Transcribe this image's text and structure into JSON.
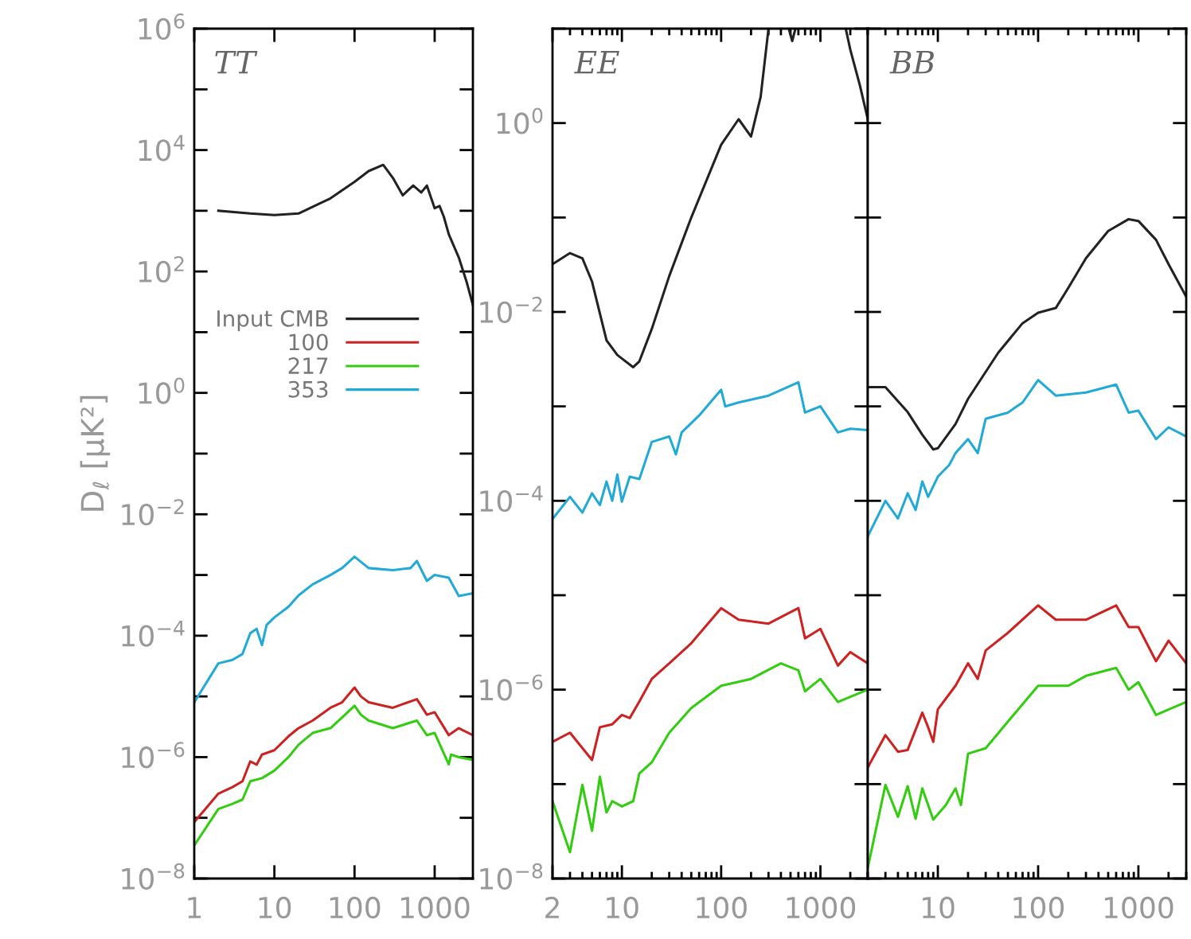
{
  "chart_data": [
    {
      "type": "line",
      "title": "TT",
      "ylabel": "D$_{ℓ}$ [μK²]",
      "log": "xy",
      "legend": "left",
      "xlim": [
        1,
        3000
      ],
      "ylim": [
        1e-08,
        1000000.0
      ],
      "xticks": [
        1,
        10,
        100,
        1000
      ],
      "yticks": [
        {
          "value": 1e-08,
          "label": "10$^{−8}$"
        },
        {
          "value": 1e-07,
          "label": null
        },
        {
          "value": 1e-06,
          "label": "10$^{−6}$"
        },
        {
          "value": 1e-05,
          "label": null
        },
        {
          "value": 0.0001,
          "label": "10$^{−4}$"
        },
        {
          "value": 0.001,
          "label": null
        },
        {
          "value": 0.01,
          "label": "10$^{−2}$"
        },
        {
          "value": 0.1,
          "label": null
        },
        {
          "value": 1,
          "label": "10$^{0}$"
        },
        {
          "value": 10,
          "label": null
        },
        {
          "value": 100,
          "label": "10$^{2}$"
        },
        {
          "value": 1000,
          "label": null
        },
        {
          "value": 10000,
          "label": "10$^{4}$"
        },
        {
          "value": 100000,
          "label": null
        },
        {
          "value": 1000000,
          "label": "10$^{6}$"
        }
      ],
      "series": [
        {
          "name": "Input CMB",
          "color": "#222222",
          "x": [
            2,
            5,
            10,
            20,
            50,
            100,
            150,
            228,
            300,
            400,
            540,
            680,
            800,
            1000,
            1150,
            1300,
            1500,
            2000,
            2500,
            3000
          ],
          "values": [
            1000,
            900,
            850,
            900,
            1600,
            3000,
            4500,
            5700,
            3500,
            1800,
            2600,
            2000,
            2600,
            1100,
            1200,
            800,
            410,
            170,
            68,
            28
          ]
        },
        {
          "name": "100",
          "color": "#cc2222",
          "x": [
            1,
            2,
            3,
            4,
            5,
            6,
            7,
            10,
            15,
            20,
            30,
            50,
            70,
            100,
            120,
            150,
            300,
            600,
            800,
            1000,
            1500,
            2000,
            3000
          ],
          "values": [
            8.5e-08,
            2.5e-07,
            3.2e-07,
            4e-07,
            8.5e-07,
            7.5e-07,
            1.1e-06,
            1.3e-06,
            2.2e-06,
            3e-06,
            4e-06,
            6.5e-06,
            8e-06,
            1.4e-05,
            1e-05,
            8e-06,
            6.5e-06,
            9e-06,
            5e-06,
            5.5e-06,
            2.3e-06,
            3e-06,
            2.3e-06
          ]
        },
        {
          "name": "217",
          "color": "#33cc11",
          "x": [
            1,
            2,
            3,
            4,
            5,
            7,
            10,
            15,
            20,
            30,
            50,
            70,
            100,
            120,
            150,
            300,
            600,
            800,
            1000,
            1500,
            1600,
            2000,
            3000
          ],
          "values": [
            3.5e-08,
            1.4e-07,
            1.7e-07,
            2e-07,
            4e-07,
            4.5e-07,
            6e-07,
            1e-06,
            1.6e-06,
            2.5e-06,
            3e-06,
            4.5e-06,
            7e-06,
            5e-06,
            4e-06,
            3e-06,
            4e-06,
            2.3e-06,
            2.5e-06,
            7.6e-07,
            1.1e-06,
            1e-06,
            9e-07
          ]
        },
        {
          "name": "353",
          "color": "#22aad6",
          "x": [
            1,
            2,
            3,
            4,
            5,
            6,
            7,
            8,
            10,
            15,
            20,
            30,
            50,
            70,
            100,
            150,
            300,
            500,
            600,
            800,
            1000,
            1500,
            2000,
            3000
          ],
          "values": [
            8e-06,
            3.5e-05,
            4e-05,
            5e-05,
            0.00011,
            0.00013,
            7e-05,
            0.00015,
            0.0002,
            0.0003,
            0.00046,
            0.0007,
            0.001,
            0.0013,
            0.002,
            0.0013,
            0.0012,
            0.0013,
            0.0017,
            0.0008,
            0.001,
            0.0009,
            0.00045,
            0.0005
          ]
        }
      ]
    },
    {
      "type": "line",
      "title": "EE",
      "log": "xy",
      "xlim": [
        2,
        3000
      ],
      "ylim": [
        1e-08,
        10
      ],
      "xticks": [
        2,
        10,
        100,
        1000
      ],
      "yticks": [
        {
          "value": 1e-08,
          "label": "10$^{−8}$"
        },
        {
          "value": 1e-07,
          "label": null
        },
        {
          "value": 1e-06,
          "label": "10$^{−6}$"
        },
        {
          "value": 1e-05,
          "label": null
        },
        {
          "value": 0.0001,
          "label": "10$^{−4}$"
        },
        {
          "value": 0.001,
          "label": null
        },
        {
          "value": 0.01,
          "label": "10$^{−2}$"
        },
        {
          "value": 0.1,
          "label": null
        },
        {
          "value": 1,
          "label": "10$^{0}$"
        },
        {
          "value": 10,
          "label": null
        }
      ],
      "series": [
        {
          "color": "#222222",
          "x": [
            2,
            3,
            4,
            5,
            7,
            9,
            13,
            15,
            20,
            30,
            50,
            100,
            150,
            200,
            250,
            300,
            400,
            480,
            520,
            560,
            1000,
            1800,
            2000,
            2500,
            3000
          ],
          "values": [
            0.032,
            0.042,
            0.037,
            0.021,
            0.005,
            0.0035,
            0.0026,
            0.003,
            0.0066,
            0.024,
            0.1,
            0.59,
            1.1,
            0.72,
            1.9,
            10,
            null,
            10,
            7.4,
            10,
            null,
            10,
            6,
            2.5,
            1.1
          ]
        },
        {
          "color": "#cc2222",
          "x": [
            2,
            3,
            5,
            6,
            8,
            10,
            12,
            15,
            20,
            30,
            50,
            100,
            150,
            300,
            600,
            700,
            1000,
            1500,
            2000,
            3000
          ],
          "values": [
            2.8e-07,
            3.5e-07,
            1.8e-07,
            4e-07,
            4.3e-07,
            5.4e-07,
            5e-07,
            7.5e-07,
            1.3e-06,
            1.9e-06,
            3.1e-06,
            7.3e-06,
            5.5e-06,
            5e-06,
            7.3e-06,
            3.5e-06,
            4.4e-06,
            1.8e-06,
            2.5e-06,
            1.9e-06
          ]
        },
        {
          "color": "#33cc11",
          "x": [
            2,
            3,
            4,
            5,
            6,
            7,
            8,
            10,
            13,
            15,
            20,
            30,
            50,
            100,
            200,
            400,
            600,
            700,
            1000,
            1500,
            3000
          ],
          "values": [
            6.6e-08,
            1.9e-08,
            9.8e-08,
            3.2e-08,
            1.2e-07,
            5e-08,
            6.6e-08,
            5.8e-08,
            6.6e-08,
            1.3e-07,
            1.7e-07,
            3.5e-07,
            6.4e-07,
            1.1e-06,
            1.3e-06,
            1.9e-06,
            1.6e-06,
            9.6e-07,
            1.3e-06,
            7.4e-07,
            1e-06
          ]
        },
        {
          "color": "#22aad6",
          "x": [
            2,
            3,
            4,
            5,
            6,
            7,
            8,
            9,
            10,
            12,
            15,
            20,
            30,
            35,
            40,
            60,
            100,
            110,
            150,
            300,
            600,
            700,
            1000,
            1500,
            2000,
            3000
          ],
          "values": [
            6.4e-05,
            0.00011,
            7.5e-05,
            0.00012,
            9e-05,
            0.00016,
            0.0001,
            0.00019,
            9.8e-05,
            0.00018,
            0.00017,
            0.00042,
            0.00048,
            0.00031,
            0.00053,
            0.0008,
            0.0015,
            0.001,
            0.0011,
            0.0013,
            0.0018,
            0.00086,
            0.001,
            0.00053,
            0.00058,
            0.00056
          ]
        }
      ]
    },
    {
      "type": "line",
      "title": "BB",
      "log": "xy",
      "tick_labels": "x",
      "xlim": [
        2,
        3000
      ],
      "ylim": [
        1e-08,
        10
      ],
      "xticks": [
        10,
        100,
        1000
      ],
      "yticks": [
        {
          "value": 1e-08,
          "label": null
        },
        {
          "value": 1e-07,
          "label": null
        },
        {
          "value": 1e-06,
          "label": null
        },
        {
          "value": 1e-05,
          "label": null
        },
        {
          "value": 0.0001,
          "label": null
        },
        {
          "value": 0.001,
          "label": null
        },
        {
          "value": 0.01,
          "label": null
        },
        {
          "value": 0.1,
          "label": null
        },
        {
          "value": 1,
          "label": null
        },
        {
          "value": 10,
          "label": null
        }
      ],
      "series": [
        {
          "color": "#222222",
          "x": [
            2,
            3,
            5,
            7,
            9,
            10,
            15,
            20,
            40,
            70,
            100,
            150,
            200,
            300,
            500,
            800,
            1000,
            1500,
            2000,
            3000
          ],
          "values": [
            0.0016,
            0.0016,
            0.00087,
            0.0005,
            0.00035,
            0.00036,
            0.00065,
            0.0012,
            0.0037,
            0.0076,
            0.0098,
            0.011,
            0.018,
            0.037,
            0.072,
            0.096,
            0.092,
            0.058,
            0.032,
            0.0145
          ]
        },
        {
          "color": "#cc2222",
          "x": [
            2,
            3,
            4,
            5,
            7,
            8,
            9,
            10,
            15,
            20,
            25,
            30,
            50,
            100,
            150,
            300,
            600,
            800,
            1000,
            1500,
            2000,
            3000
          ],
          "values": [
            1.5e-07,
            3.3e-07,
            2.2e-07,
            2.3e-07,
            5.7e-07,
            4e-07,
            2.8e-07,
            6.2e-07,
            1.1e-06,
            1.9e-06,
            1.3e-06,
            2.6e-06,
            4e-06,
            7.8e-06,
            5.5e-06,
            5.5e-06,
            7.8e-06,
            4.6e-06,
            4.6e-06,
            2e-06,
            3.3e-06,
            1.9e-06
          ]
        },
        {
          "color": "#33cc11",
          "x": [
            2,
            3,
            4,
            5,
            6,
            7,
            9,
            12,
            15,
            17,
            20,
            30,
            50,
            100,
            200,
            300,
            600,
            800,
            1000,
            1500,
            3000
          ],
          "values": [
            1.3e-08,
            9.8e-08,
            4.5e-08,
            9.5e-08,
            4.3e-08,
            9e-08,
            4.2e-08,
            6e-08,
            9e-08,
            6e-08,
            2.1e-07,
            2.4e-07,
            4.6e-07,
            1.1e-06,
            1.1e-06,
            1.4e-06,
            1.7e-06,
            1e-06,
            1.2e-06,
            5.4e-07,
            7.4e-07
          ]
        },
        {
          "color": "#22aad6",
          "x": [
            2,
            3,
            4,
            5,
            6,
            7,
            8,
            10,
            13,
            15,
            20,
            25,
            30,
            50,
            70,
            100,
            150,
            300,
            600,
            800,
            1000,
            1500,
            2000,
            3000
          ],
          "values": [
            4.2e-05,
            0.0001,
            6.5e-05,
            0.00012,
            8e-05,
            0.00016,
            0.00011,
            0.00018,
            0.00024,
            0.00032,
            0.00045,
            0.00032,
            0.00074,
            0.00086,
            0.0011,
            0.0019,
            0.0013,
            0.0014,
            0.0017,
            0.00086,
            0.0009,
            0.00045,
            0.0006,
            0.00048
          ]
        }
      ]
    }
  ]
}
